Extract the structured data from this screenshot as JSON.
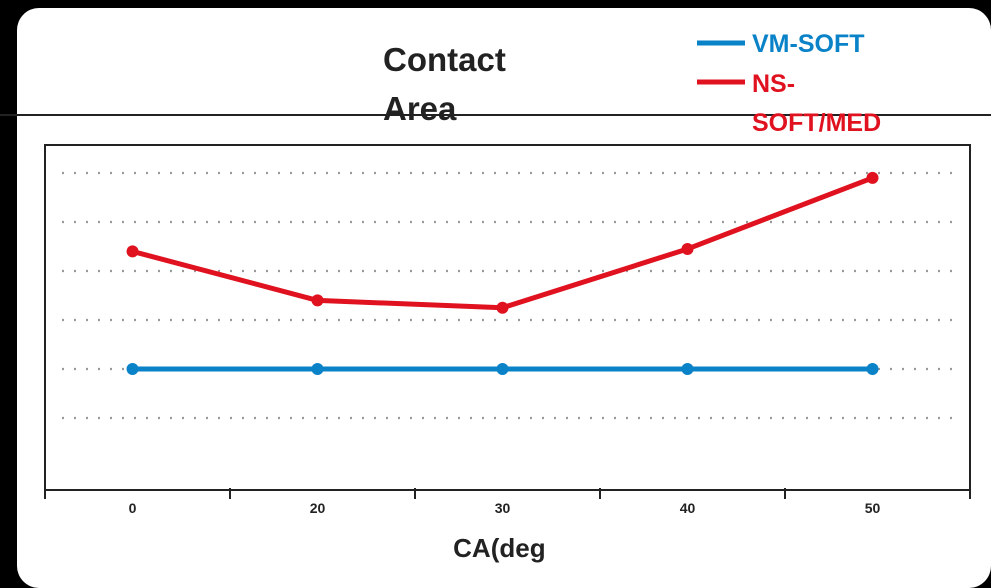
{
  "chart_data": {
    "type": "line",
    "title_lines": [
      "Contact",
      "Area"
    ],
    "categories": [
      "0",
      "20",
      "30",
      "40",
      "50"
    ],
    "xlabel_lines": [
      "CA(deg",
      ")"
    ],
    "ylabel": "",
    "ylim": [
      0,
      7
    ],
    "grid": true,
    "legend_position": "top-right",
    "series": [
      {
        "name": "VM-SOFT",
        "name_lines": [
          "VM-SOFT"
        ],
        "color": "#0a82c8",
        "values": [
          2,
          2,
          2,
          2,
          2
        ]
      },
      {
        "name": "NS-SOFT/MED",
        "name_lines": [
          "NS-",
          "SOFT/MED"
        ],
        "color": "#e0121f",
        "values": [
          4.4,
          3.4,
          3.25,
          4.45,
          5.9
        ]
      }
    ]
  }
}
